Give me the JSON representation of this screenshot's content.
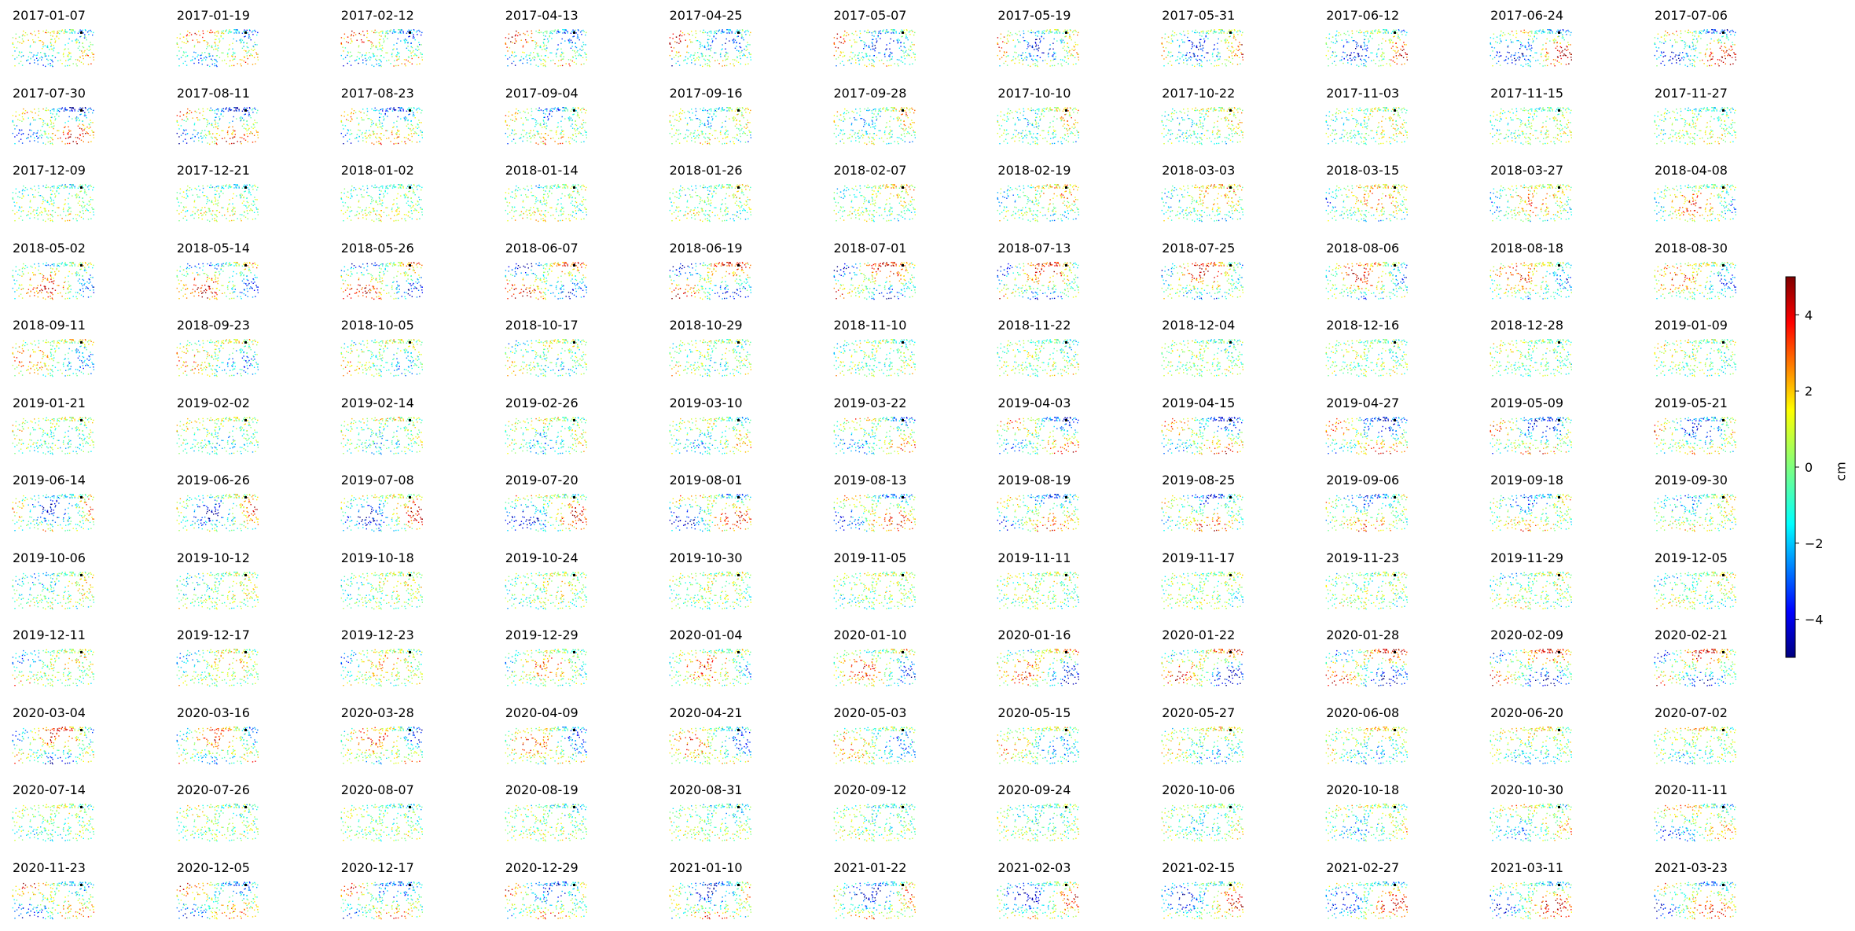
{
  "chart_data": {
    "type": "heatmap",
    "title": "",
    "panel_titles": [
      "2017-01-07",
      "2017-01-19",
      "2017-02-12",
      "2017-04-13",
      "2017-04-25",
      "2017-05-07",
      "2017-05-19",
      "2017-05-31",
      "2017-06-12",
      "2017-06-24",
      "2017-07-06",
      "2017-07-30",
      "2017-08-11",
      "2017-08-23",
      "2017-09-04",
      "2017-09-16",
      "2017-09-28",
      "2017-10-10",
      "2017-10-22",
      "2017-11-03",
      "2017-11-15",
      "2017-11-27",
      "2017-12-09",
      "2017-12-21",
      "2018-01-02",
      "2018-01-14",
      "2018-01-26",
      "2018-02-07",
      "2018-02-19",
      "2018-03-03",
      "2018-03-15",
      "2018-03-27",
      "2018-04-08",
      "2018-05-02",
      "2018-05-14",
      "2018-05-26",
      "2018-06-07",
      "2018-06-19",
      "2018-07-01",
      "2018-07-13",
      "2018-07-25",
      "2018-08-06",
      "2018-08-18",
      "2018-08-30",
      "2018-09-11",
      "2018-09-23",
      "2018-10-05",
      "2018-10-17",
      "2018-10-29",
      "2018-11-10",
      "2018-11-22",
      "2018-12-04",
      "2018-12-16",
      "2018-12-28",
      "2019-01-09",
      "2019-01-21",
      "2019-02-02",
      "2019-02-14",
      "2019-02-26",
      "2019-03-10",
      "2019-03-22",
      "2019-04-03",
      "2019-04-15",
      "2019-04-27",
      "2019-05-09",
      "2019-05-21",
      "2019-06-14",
      "2019-06-26",
      "2019-07-08",
      "2019-07-20",
      "2019-08-01",
      "2019-08-13",
      "2019-08-19",
      "2019-08-25",
      "2019-09-06",
      "2019-09-18",
      "2019-09-30",
      "2019-10-06",
      "2019-10-12",
      "2019-10-18",
      "2019-10-24",
      "2019-10-30",
      "2019-11-05",
      "2019-11-11",
      "2019-11-17",
      "2019-11-23",
      "2019-11-29",
      "2019-12-05",
      "2019-12-11",
      "2019-12-17",
      "2019-12-23",
      "2019-12-29",
      "2020-01-04",
      "2020-01-10",
      "2020-01-16",
      "2020-01-22",
      "2020-01-28",
      "2020-02-09",
      "2020-02-21",
      "2020-03-04",
      "2020-03-16",
      "2020-03-28",
      "2020-04-09",
      "2020-04-21",
      "2020-05-03",
      "2020-05-15",
      "2020-05-27",
      "2020-06-08",
      "2020-06-20",
      "2020-07-02",
      "2020-07-14",
      "2020-07-26",
      "2020-08-07",
      "2020-08-19",
      "2020-08-31",
      "2020-09-12",
      "2020-09-24",
      "2020-10-06",
      "2020-10-18",
      "2020-10-30",
      "2020-11-11",
      "2020-11-23",
      "2020-12-05",
      "2020-12-17",
      "2020-12-29",
      "2021-01-10",
      "2021-01-22",
      "2021-02-03",
      "2021-02-15",
      "2021-02-27",
      "2021-03-11",
      "2021-03-23"
    ],
    "grid": {
      "rows": 12,
      "cols": 11
    },
    "colorbar": {
      "label": "cm",
      "range": [
        -5,
        5
      ],
      "ticks": [
        -4,
        -2,
        0,
        2,
        4
      ],
      "tick_labels": [
        "−4",
        "−2",
        "0",
        "2",
        "4"
      ],
      "colormap": "jet"
    },
    "grid_lines": false,
    "axes_visible": false
  }
}
